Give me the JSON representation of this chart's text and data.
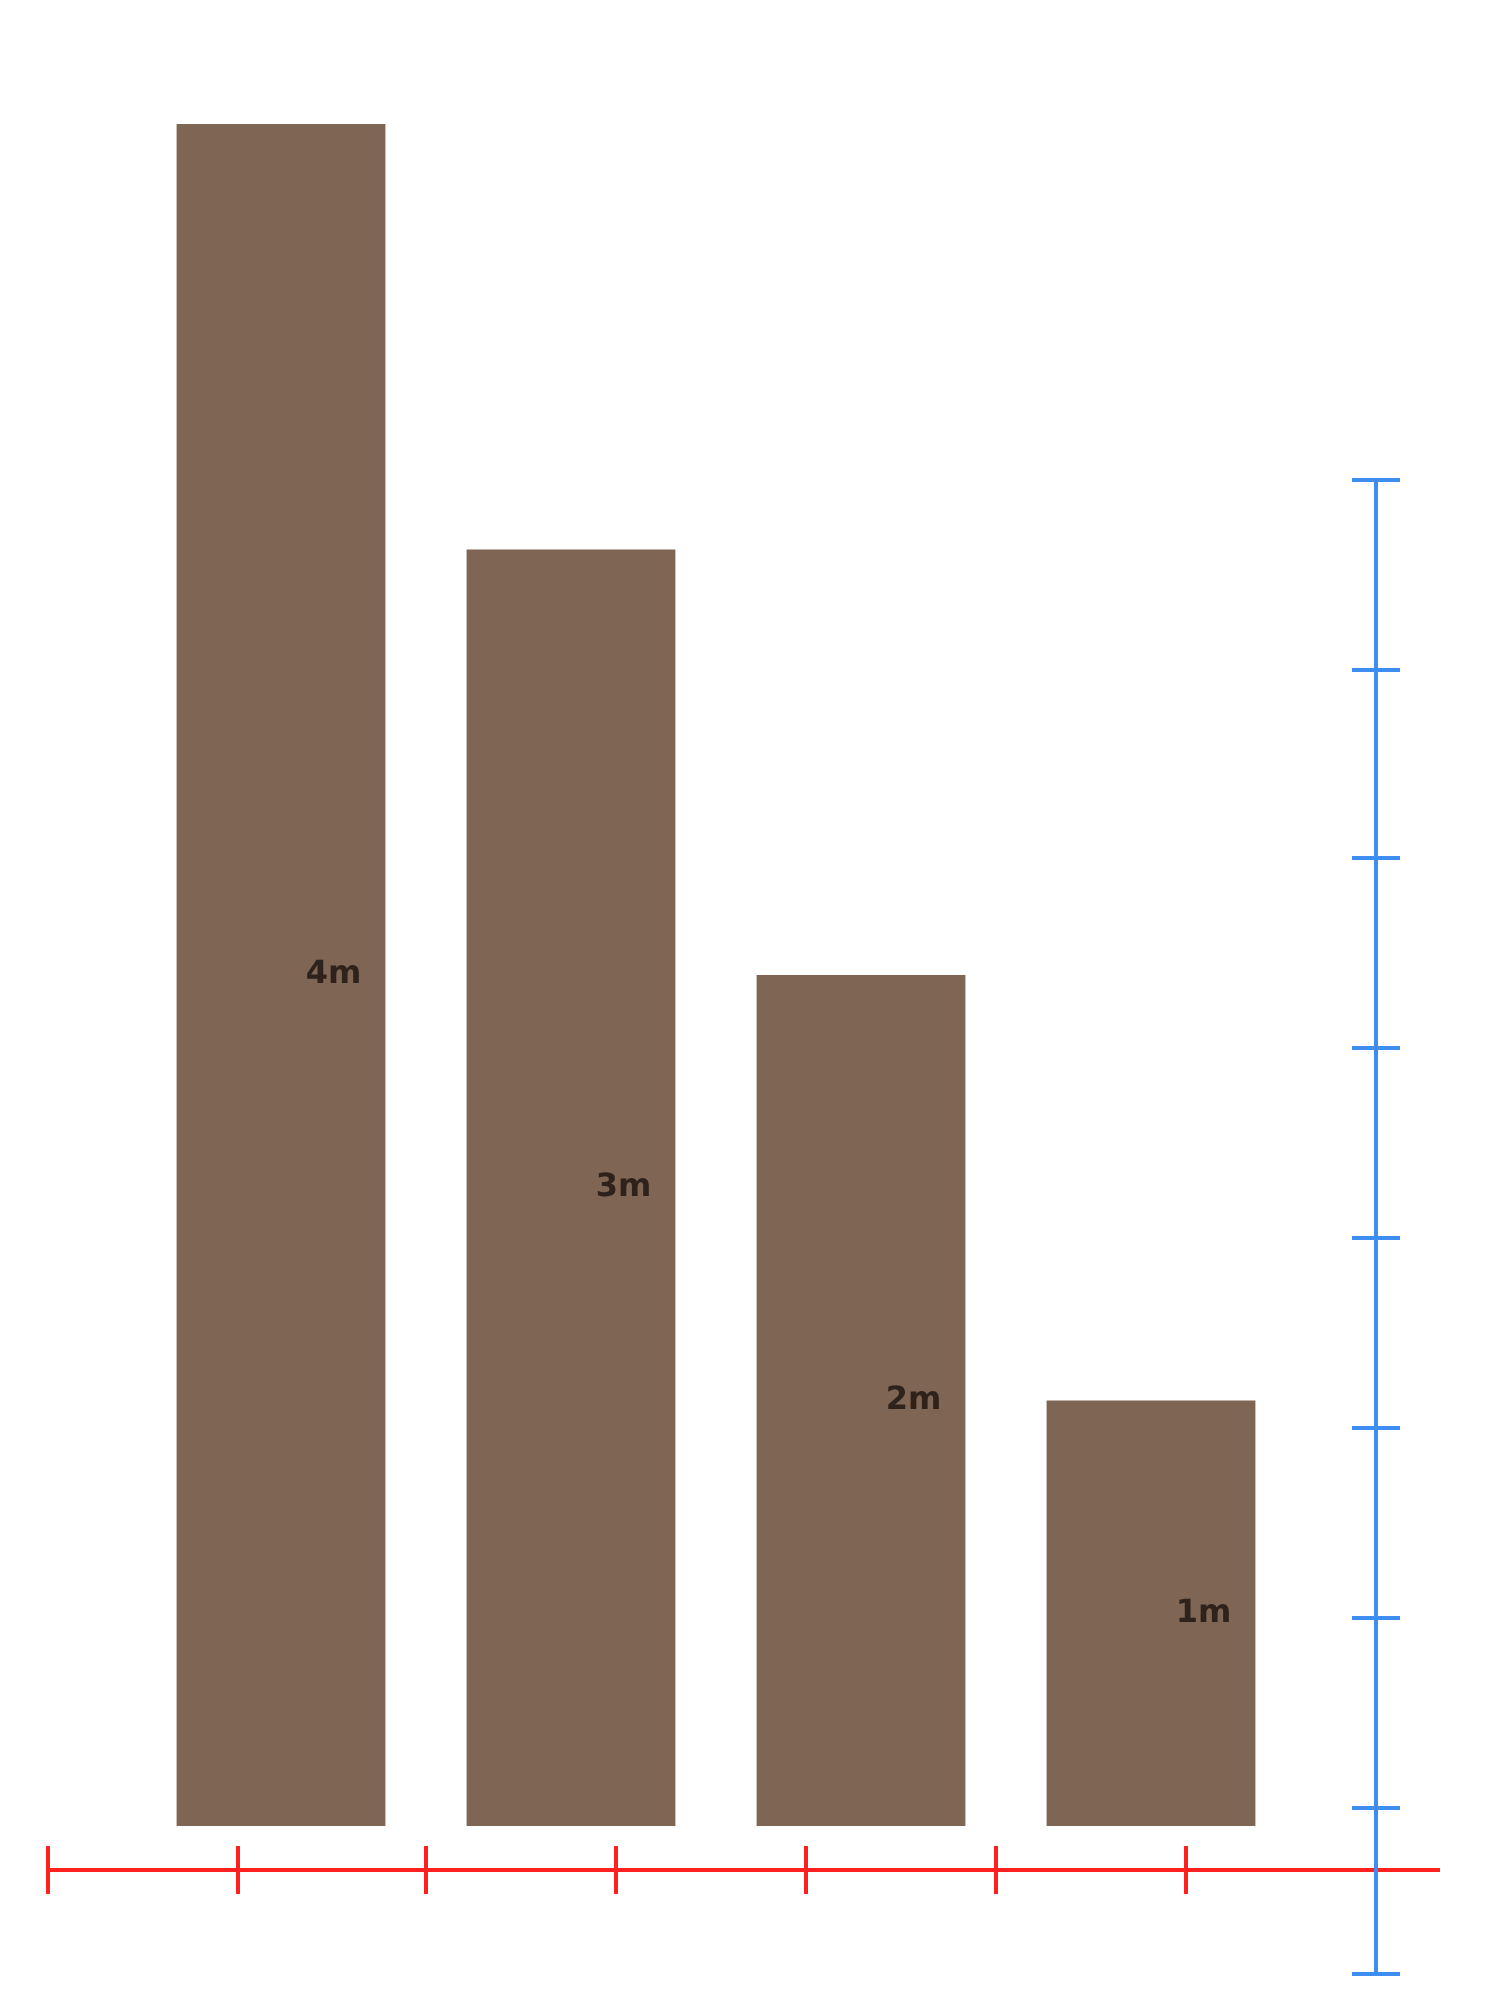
{
  "chart_data": {
    "type": "bar",
    "categories": [
      null,
      null,
      null,
      null
    ],
    "values": [
      4,
      3,
      2,
      1
    ],
    "value_labels": [
      "4m",
      "3m",
      "2m",
      "1m"
    ],
    "color": "#7f6553",
    "tick_labels": false,
    "grid": false,
    "legend": false
  }
}
